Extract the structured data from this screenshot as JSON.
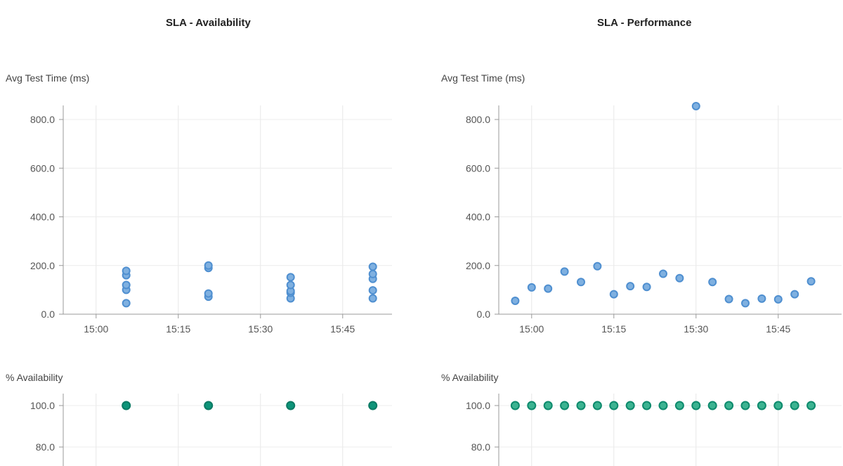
{
  "chart_data": [
    {
      "type": "scatter",
      "title": "SLA - Availability",
      "ylabel": "Avg Test Time (ms)",
      "xlim": [
        "14:54",
        "15:54"
      ],
      "ylim": [
        0,
        850
      ],
      "yticks": [
        "0.0",
        "200.0",
        "400.0",
        "600.0",
        "800.0"
      ],
      "xticks": [
        "15:00",
        "15:15",
        "15:30",
        "15:45"
      ],
      "grid": true,
      "marker_color": "#7fb0e0",
      "marker_edge": "#4f8fd0",
      "points": [
        {
          "x": "15:05.5",
          "y": 45
        },
        {
          "x": "15:05.5",
          "y": 100
        },
        {
          "x": "15:05.5",
          "y": 120
        },
        {
          "x": "15:05.5",
          "y": 160
        },
        {
          "x": "15:05.5",
          "y": 178
        },
        {
          "x": "15:20.5",
          "y": 72
        },
        {
          "x": "15:20.5",
          "y": 85
        },
        {
          "x": "15:20.5",
          "y": 190
        },
        {
          "x": "15:20.5",
          "y": 200
        },
        {
          "x": "15:35.5",
          "y": 65
        },
        {
          "x": "15:35.5",
          "y": 88
        },
        {
          "x": "15:35.5",
          "y": 95
        },
        {
          "x": "15:35.5",
          "y": 120
        },
        {
          "x": "15:35.5",
          "y": 152
        },
        {
          "x": "15:50.5",
          "y": 65
        },
        {
          "x": "15:50.5",
          "y": 98
        },
        {
          "x": "15:50.5",
          "y": 145
        },
        {
          "x": "15:50.5",
          "y": 165
        },
        {
          "x": "15:50.5",
          "y": 195
        }
      ]
    },
    {
      "type": "scatter",
      "title": "SLA - Performance",
      "ylabel": "Avg Test Time (ms)",
      "xlim": [
        "14:54",
        "15:54"
      ],
      "ylim": [
        0,
        850
      ],
      "yticks": [
        "0.0",
        "200.0",
        "400.0",
        "600.0",
        "800.0"
      ],
      "xticks": [
        "15:00",
        "15:15",
        "15:30",
        "15:45"
      ],
      "grid": true,
      "marker_color": "#7fb0e0",
      "marker_edge": "#4f8fd0",
      "points": [
        {
          "x": "14:57",
          "y": 55
        },
        {
          "x": "15:00",
          "y": 110
        },
        {
          "x": "15:03",
          "y": 105
        },
        {
          "x": "15:06",
          "y": 175
        },
        {
          "x": "15:09",
          "y": 132
        },
        {
          "x": "15:12",
          "y": 197
        },
        {
          "x": "15:15",
          "y": 82
        },
        {
          "x": "15:18",
          "y": 115
        },
        {
          "x": "15:21",
          "y": 112
        },
        {
          "x": "15:24",
          "y": 166
        },
        {
          "x": "15:27",
          "y": 148
        },
        {
          "x": "15:30",
          "y": 855
        },
        {
          "x": "15:33",
          "y": 132
        },
        {
          "x": "15:36",
          "y": 62
        },
        {
          "x": "15:39",
          "y": 45
        },
        {
          "x": "15:42",
          "y": 64
        },
        {
          "x": "15:45",
          "y": 61
        },
        {
          "x": "15:48",
          "y": 82
        },
        {
          "x": "15:51",
          "y": 135
        }
      ]
    },
    {
      "type": "scatter",
      "ylabel": "% Availability",
      "xlim": [
        "14:54",
        "15:54"
      ],
      "ylim": [
        0,
        100
      ],
      "yticks": [
        "80.0",
        "100.0"
      ],
      "grid": true,
      "marker_color": "#0e9479",
      "marker_edge": "#0b7a64",
      "points": [
        {
          "x": "15:05.5",
          "y": 100
        },
        {
          "x": "15:20.5",
          "y": 100
        },
        {
          "x": "15:35.5",
          "y": 100
        },
        {
          "x": "15:50.5",
          "y": 100
        }
      ]
    },
    {
      "type": "scatter",
      "ylabel": "% Availability",
      "xlim": [
        "14:54",
        "15:54"
      ],
      "ylim": [
        0,
        100
      ],
      "yticks": [
        "80.0",
        "100.0"
      ],
      "grid": true,
      "marker_color": "#3cb391",
      "marker_edge": "#0e8a6d",
      "points": [
        {
          "x": "14:57",
          "y": 100
        },
        {
          "x": "15:00",
          "y": 100
        },
        {
          "x": "15:03",
          "y": 100
        },
        {
          "x": "15:06",
          "y": 100
        },
        {
          "x": "15:09",
          "y": 100
        },
        {
          "x": "15:12",
          "y": 100
        },
        {
          "x": "15:15",
          "y": 100
        },
        {
          "x": "15:18",
          "y": 100
        },
        {
          "x": "15:21",
          "y": 100
        },
        {
          "x": "15:24",
          "y": 100
        },
        {
          "x": "15:27",
          "y": 100
        },
        {
          "x": "15:30",
          "y": 100
        },
        {
          "x": "15:33",
          "y": 100
        },
        {
          "x": "15:36",
          "y": 100
        },
        {
          "x": "15:39",
          "y": 100
        },
        {
          "x": "15:42",
          "y": 100
        },
        {
          "x": "15:45",
          "y": 100
        },
        {
          "x": "15:48",
          "y": 100
        },
        {
          "x": "15:51",
          "y": 100
        }
      ]
    }
  ]
}
